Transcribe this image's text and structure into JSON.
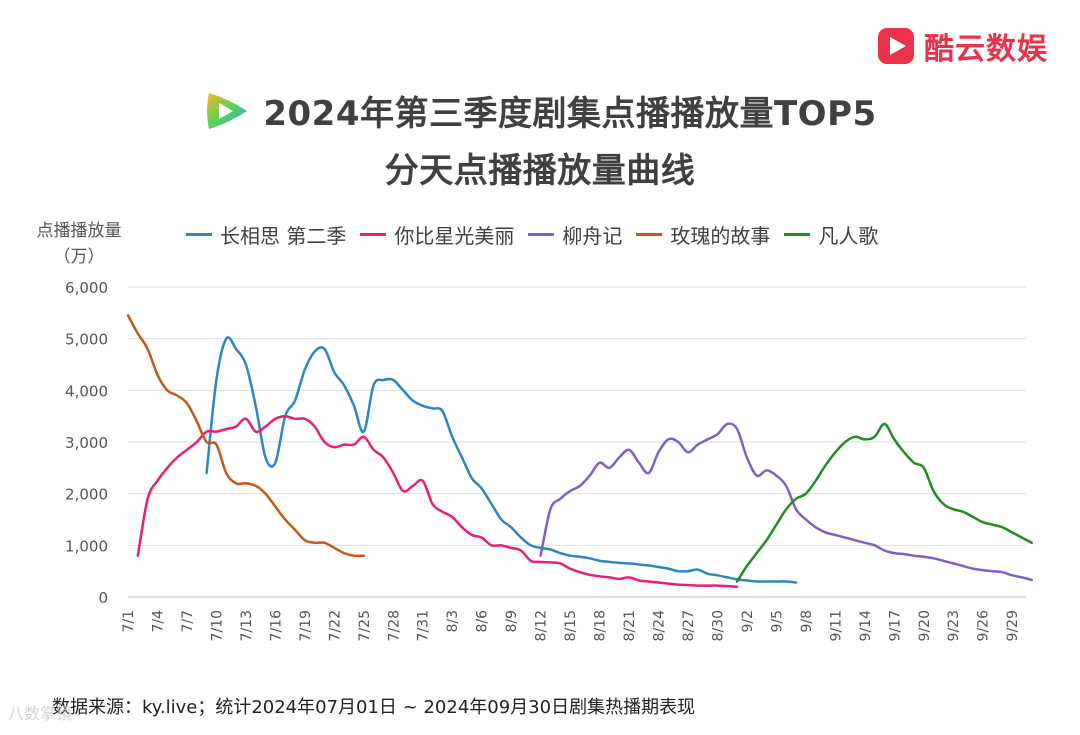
{
  "brand": {
    "name": "酷云数娱",
    "color": "#e8334a"
  },
  "title": {
    "line1": "2024年第三季度剧集点播播放量TOP5",
    "line2": "分天点播播放量曲线"
  },
  "unit_label": {
    "line1": "点播播放量",
    "line2": "（万）"
  },
  "source": "数据来源：ky.live；统计2024年07月01日 ~ 2024年09月30日剧集热播期表现",
  "watermark": "八数掌镜",
  "chart_data": {
    "type": "line",
    "ylim": [
      0,
      6000
    ],
    "yticks": [
      "0",
      "1,000",
      "2,000",
      "3,000",
      "4,000",
      "5,000",
      "6,000"
    ],
    "xticks": [
      "7/1",
      "7/4",
      "7/7",
      "7/10",
      "7/13",
      "7/16",
      "7/19",
      "7/22",
      "7/25",
      "7/28",
      "7/31",
      "8/3",
      "8/6",
      "8/9",
      "8/12",
      "8/15",
      "8/18",
      "8/21",
      "8/24",
      "8/27",
      "8/30",
      "9/2",
      "9/5",
      "9/8",
      "9/11",
      "9/14",
      "9/17",
      "9/20",
      "9/23",
      "9/26",
      "9/29"
    ],
    "grid": true,
    "legend_position": "top",
    "series": [
      {
        "name": "长相思 第二季",
        "color": "#2e86c1",
        "start_day": 8,
        "values": [
          2400,
          4200,
          5000,
          4800,
          4500,
          3700,
          2700,
          2600,
          3500,
          3800,
          4400,
          4750,
          4800,
          4350,
          4100,
          3700,
          3200,
          4100,
          4200,
          4200,
          4000,
          3800,
          3700,
          3650,
          3600,
          3100,
          2700,
          2300,
          2100,
          1800,
          1500,
          1350,
          1150,
          1000,
          950,
          920,
          850,
          800,
          780,
          750,
          700,
          680,
          660,
          650,
          630,
          610,
          580,
          550,
          500,
          500,
          530,
          450,
          420,
          380,
          340,
          320,
          300,
          300,
          300,
          300,
          280
        ]
      },
      {
        "name": "你比星光美丽",
        "color": "#e91e7a",
        "start_day": 1,
        "values": [
          800,
          1900,
          2250,
          2500,
          2700,
          2850,
          3000,
          3200,
          3200,
          3250,
          3300,
          3450,
          3200,
          3300,
          3450,
          3500,
          3450,
          3450,
          3300,
          3000,
          2900,
          2950,
          2950,
          3100,
          2850,
          2700,
          2400,
          2050,
          2150,
          2250,
          1800,
          1650,
          1550,
          1350,
          1200,
          1150,
          1000,
          1000,
          950,
          900,
          700,
          680,
          670,
          650,
          550,
          480,
          430,
          400,
          380,
          350,
          380,
          320,
          300,
          280,
          260,
          240,
          230,
          220,
          220,
          220,
          210,
          200
        ]
      },
      {
        "name": "柳舟记",
        "color": "#8060c8",
        "start_day": 42,
        "values": [
          800,
          1700,
          1900,
          2050,
          2150,
          2350,
          2600,
          2500,
          2700,
          2850,
          2600,
          2400,
          2800,
          3050,
          3000,
          2800,
          2950,
          3050,
          3150,
          3350,
          3250,
          2700,
          2350,
          2450,
          2350,
          2150,
          1700,
          1500,
          1350,
          1250,
          1200,
          1150,
          1100,
          1050,
          1000,
          900,
          850,
          830,
          800,
          780,
          750,
          700,
          650,
          600,
          550,
          520,
          500,
          480,
          420,
          380,
          330
        ]
      },
      {
        "name": "玫瑰的故事",
        "color": "#c0591a",
        "start_day": 0,
        "values": [
          5450,
          5100,
          4800,
          4300,
          4000,
          3900,
          3750,
          3400,
          3000,
          2950,
          2400,
          2200,
          2200,
          2150,
          2000,
          1750,
          1500,
          1300,
          1100,
          1050,
          1050,
          950,
          850,
          800,
          800
        ]
      },
      {
        "name": "凡人歌",
        "color": "#228b22",
        "start_day": 62,
        "values": [
          300,
          600,
          850,
          1100,
          1400,
          1700,
          1900,
          2000,
          2250,
          2550,
          2800,
          3000,
          3100,
          3050,
          3100,
          3350,
          3050,
          2800,
          2600,
          2500,
          2050,
          1800,
          1700,
          1650,
          1550,
          1450,
          1400,
          1350,
          1250,
          1150,
          1050
        ]
      }
    ]
  }
}
